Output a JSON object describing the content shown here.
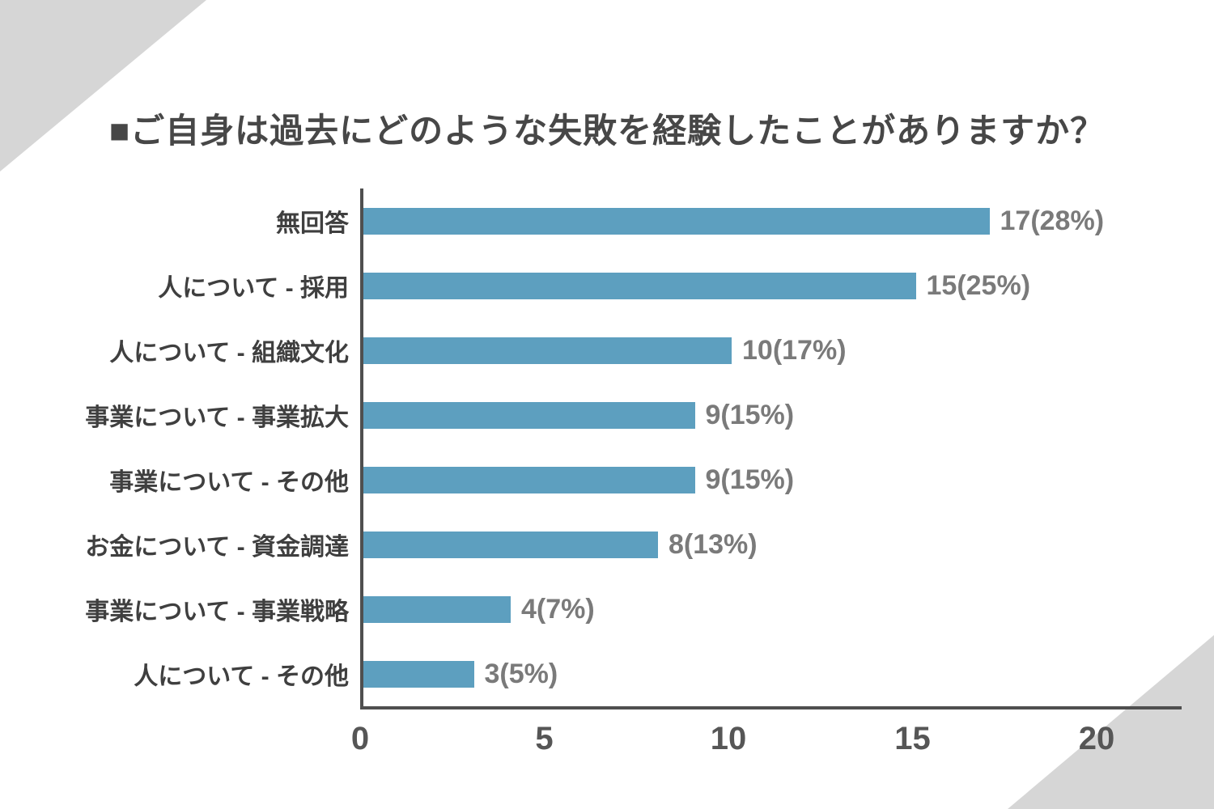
{
  "page": {
    "background_color": "#ffffff",
    "corner_triangle_color": "#d6d6d6"
  },
  "title": "■ご自身は過去にどのような失敗を経験したことがありますか？",
  "chart_data": {
    "type": "bar",
    "orientation": "horizontal",
    "title": "■ご自身は過去にどのような失敗を経験したことがありますか？",
    "categories": [
      "無回答",
      "人について - 採用",
      "人について - 組織文化",
      "事業について - 事業拡大",
      "事業について - その他",
      "お金について - 資金調達",
      "事業について - 事業戦略",
      "人について - その他"
    ],
    "values": [
      17,
      15,
      10,
      9,
      9,
      8,
      4,
      3
    ],
    "data_labels": [
      "17(28%)",
      "15(25%)",
      "10(17%)",
      "9(15%)",
      "9(15%)",
      "8(13%)",
      "4(7%)",
      "3(5%)"
    ],
    "xlim": [
      0,
      20
    ],
    "x_ticks": [
      0,
      5,
      10,
      15,
      20
    ],
    "xlabel": "",
    "ylabel": "",
    "grid": false,
    "legend": false,
    "bar_color": "#5d9fbf",
    "axis_color": "#4f4f4f",
    "category_label_color": "#3f3f3f",
    "value_label_color": "#7a7a7a",
    "tick_label_color": "#565656"
  }
}
